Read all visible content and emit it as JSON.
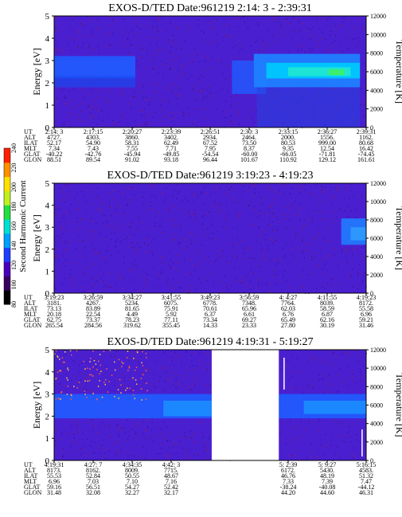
{
  "chart_data": {
    "type": "heatmap",
    "colorbar": {
      "label": "Second Harmonic Current",
      "ticks": [
        "80",
        "100",
        "120",
        "140",
        "160",
        "180",
        "200",
        "220",
        "240"
      ],
      "colors": [
        "#000000",
        "#3a0060",
        "#4a00b8",
        "#1f3cff",
        "#00a0ff",
        "#00e0d0",
        "#20e040",
        "#c0f020",
        "#ffe000",
        "#ff9000",
        "#ff2000"
      ]
    },
    "panels": [
      {
        "title": "EXOS-D/TED   Date:961219  2:14: 3 - 2:39:31",
        "ylabel": "Energy [eV]",
        "y2label": "Temperature [K]",
        "ylim": [
          0,
          5
        ],
        "y2lim": [
          0,
          12000
        ],
        "yticks": [
          "0",
          "1",
          "2",
          "3",
          "4",
          "5"
        ],
        "y2ticks": [
          "0",
          "2000",
          "4000",
          "6000",
          "8000",
          "10000",
          "12000"
        ],
        "orbit_labels": [
          "UT",
          "ALT",
          "ILAT",
          "MLT",
          "GLAT",
          "GLON"
        ],
        "orbit_columns": [
          [
            "2:14: 3",
            "4727.",
            "52.17",
            "7.34",
            "-40.22",
            "88.51"
          ],
          [
            "2:17:15",
            "4303.",
            "54.90",
            "7.43",
            "-42.76",
            "89.54"
          ],
          [
            "2:20:27",
            "3860.",
            "58.31",
            "7.55",
            "-45.94",
            "91.02"
          ],
          [
            "2:23:39",
            "3402.",
            "62.49",
            "7.71",
            "-49.85",
            "93.18"
          ],
          [
            "2:26:51",
            "2934.",
            "67.52",
            "7.95",
            "-54.54",
            "96.44"
          ],
          [
            "2:30: 3",
            "2464.",
            "73.50",
            "8.37",
            "-60.00",
            "101.67"
          ],
          [
            "2:33:15",
            "2000.",
            "80.53",
            "9.35",
            "-66.05",
            "110.92"
          ],
          [
            "2:36:27",
            "1556.",
            "999.00",
            "12.54",
            "-71.81",
            "129.12"
          ],
          [
            "2:39:31",
            "1162.",
            "80.68",
            "16.42",
            "-74.45",
            "161.61"
          ]
        ]
      },
      {
        "title": "EXOS-D/TED   Date:961219  3:19:23 - 4:19:23",
        "ylabel": "Energy [eV]",
        "y2label": "Temperature [K]",
        "ylim": [
          0,
          5
        ],
        "y2lim": [
          0,
          12000
        ],
        "yticks": [
          "0",
          "1",
          "2",
          "3",
          "4",
          "5"
        ],
        "y2ticks": [
          "0",
          "2000",
          "4000",
          "6000",
          "8000",
          "10000",
          "12000"
        ],
        "orbit_labels": [
          "UT",
          "ALT",
          "ILAT",
          "MLT",
          "GLAT",
          "GLON"
        ],
        "orbit_columns": [
          [
            "3:19:23",
            "3181.",
            "73.13",
            "20.18",
            "62.75",
            "265.54"
          ],
          [
            "3:26:59",
            "4267.",
            "83.89",
            "22.54",
            "73.37",
            "284.56"
          ],
          [
            "3:34:27",
            "5234.",
            "81.65",
            "4.49",
            "78.23",
            "319.62"
          ],
          [
            "3:41:55",
            "6075.",
            "75.91",
            "5.92",
            "77.11",
            "355.45"
          ],
          [
            "3:49:23",
            "6778.",
            "70.61",
            "6.37",
            "73.34",
            "14.33"
          ],
          [
            "3:56:59",
            "7348.",
            "65.96",
            "6.61",
            "69.27",
            "23.33"
          ],
          [
            "4: 4:27",
            "7764.",
            "62.03",
            "6.76",
            "65.49",
            "27.80"
          ],
          [
            "4:11:55",
            "8039.",
            "58.59",
            "6.87",
            "62.16",
            "30.19"
          ],
          [
            "4:19:23",
            "8172.",
            "55.58",
            "6.96",
            "59.21",
            "31.46"
          ]
        ]
      },
      {
        "title": "EXOS-D/TED   Date:961219  4:19:31 - 5:19:27",
        "ylabel": "Energy [eV]",
        "y2label": "Temperature [K]",
        "ylim": [
          0,
          5
        ],
        "y2lim": [
          0,
          12000
        ],
        "yticks": [
          "0",
          "1",
          "2",
          "3",
          "4",
          "5"
        ],
        "y2ticks": [
          "0",
          "2000",
          "4000",
          "6000",
          "8000",
          "10000",
          "12000"
        ],
        "orbit_labels": [
          "UT",
          "ALT",
          "ILAT",
          "MLT",
          "GLAT",
          "GLON"
        ],
        "orbit_columns": [
          [
            "4:19:31",
            "8173.",
            "55.53",
            "6.96",
            "59.16",
            "31.48"
          ],
          [
            "4:27: 7",
            "8162.",
            "52.84",
            "7.03",
            "56.51",
            "32.08"
          ],
          [
            "4:34:35",
            "8009.",
            "50.55",
            "7.10",
            "54.27",
            "32.27"
          ],
          [
            "4:42: 3",
            "7715.",
            "48.67",
            "7.16",
            "52.42",
            "32.17"
          ],
          [
            "",
            "",
            "",
            "",
            "",
            ""
          ],
          [
            "",
            "",
            "",
            "",
            "",
            ""
          ],
          [
            "5: 2:39",
            "6172.",
            "46.76",
            "7.33",
            "-38.24",
            "44.20"
          ],
          [
            "5: 9:27",
            "5430.",
            "48.19",
            "7.39",
            "-40.08",
            "44.60"
          ],
          [
            "5:16:15",
            "4583.",
            "51.32",
            "7.47",
            "-44.12",
            "46.31"
          ]
        ]
      }
    ]
  }
}
